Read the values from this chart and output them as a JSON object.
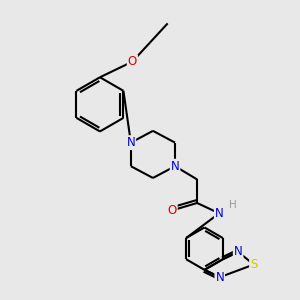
{
  "background_color": "#e8e8e8",
  "bond_color": "#000000",
  "bond_width": 1.5,
  "atom_colors": {
    "N": "#0000dd",
    "O": "#dd0000",
    "S": "#cccc00",
    "H": "#999999",
    "C": "#000000"
  },
  "font_size_atom": 8.5,
  "font_size_h": 7.5
}
